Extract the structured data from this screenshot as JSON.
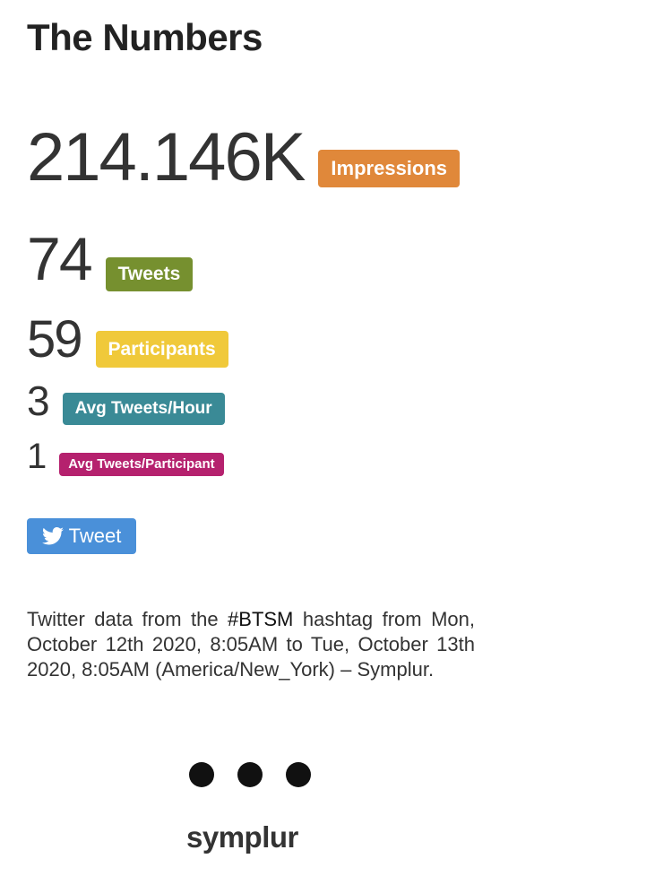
{
  "header": {
    "title": "The Numbers"
  },
  "stats": [
    {
      "value": "214.146K",
      "label": "Impressions"
    },
    {
      "value": "74",
      "label": "Tweets"
    },
    {
      "value": "59",
      "label": "Participants"
    },
    {
      "value": "3",
      "label": "Avg Tweets/Hour"
    },
    {
      "value": "1",
      "label": "Avg Tweets/Participant"
    }
  ],
  "tweet_button": {
    "label": "Tweet"
  },
  "description": {
    "before": "Twitter data from the",
    "hashtag": "#BTSM",
    "after": "hashtag from Mon, October 12th 2020, 8:05AM to Tue, October 13th 2020, 8:05AM (America/New_York) – Symplur."
  },
  "footer": {
    "logo": "symplur"
  }
}
